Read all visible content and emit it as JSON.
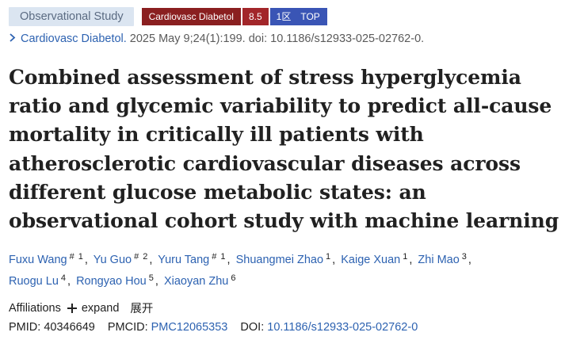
{
  "header": {
    "publication_type": "Observational Study",
    "badges": {
      "journal": "Cardiovasc Diabetol",
      "impact_factor": "8.5",
      "zone": "1区",
      "top": "TOP"
    },
    "colors": {
      "journal_badge": "#8a1f20",
      "impact_badge": "#a2262a",
      "zone_badge": "#3a55b5",
      "pub_type_bg": "#dbe5f1",
      "link": "#2d62b1"
    }
  },
  "citation": {
    "chevron_icon": "chevron-right-icon",
    "journal": "Cardiovasc Diabetol.",
    "details": "2025 May 9;24(1):199. doi: 10.1186/s12933-025-02762-0."
  },
  "title": "Combined assessment of stress hyperglycemia ratio and glycemic variability to predict all-cause mortality in critically ill patients with atherosclerotic cardiovascular diseases across different glucose metabolic states: an observational cohort study with machine learning",
  "authors": [
    {
      "name": "Fuxu Wang",
      "sup": "# 1"
    },
    {
      "name": "Yu Guo",
      "sup": "# 2"
    },
    {
      "name": "Yuru Tang",
      "sup": "# 1"
    },
    {
      "name": "Shuangmei Zhao",
      "sup": "1"
    },
    {
      "name": "Kaige Xuan",
      "sup": "1"
    },
    {
      "name": "Zhi Mao",
      "sup": "3"
    },
    {
      "name": "Ruogu Lu",
      "sup": "4"
    },
    {
      "name": "Rongyao Hou",
      "sup": "5"
    },
    {
      "name": "Xiaoyan Zhu",
      "sup": "6"
    }
  ],
  "affiliations": {
    "label": "Affiliations",
    "plus_icon": "plus-icon",
    "expand": "expand",
    "expand_cn": "展开"
  },
  "ids": {
    "pmid_label": "PMID:",
    "pmid": "40346649",
    "pmcid_label": "PMCID:",
    "pmcid": "PMC12065353",
    "doi_label": "DOI:",
    "doi": "10.1186/s12933-025-02762-0"
  }
}
